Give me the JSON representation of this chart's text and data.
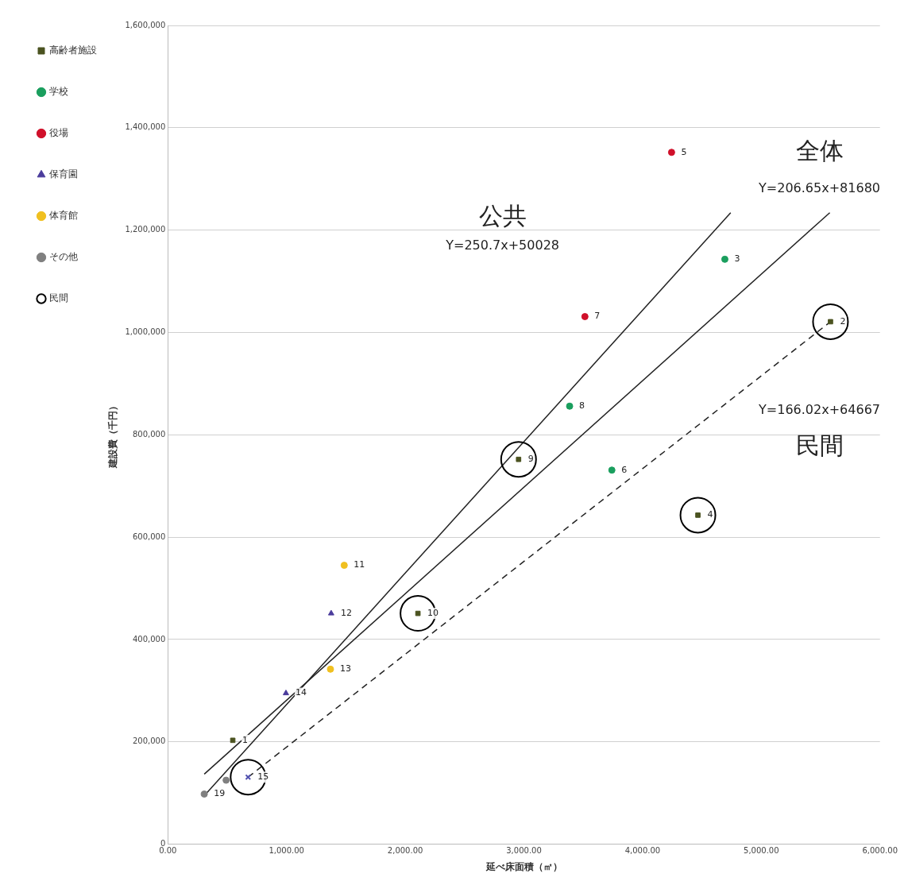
{
  "chart_data": {
    "type": "scatter",
    "xlabel": "延べ床面積（㎡）",
    "ylabel": "建設費（千円）",
    "xlim": [
      0,
      6000
    ],
    "xticks": [
      {
        "value": 0,
        "label": "0.00"
      },
      {
        "value": 1000,
        "label": "1,000.00"
      },
      {
        "value": 2000,
        "label": "2,000.00"
      },
      {
        "value": 3000,
        "label": "3,000.00"
      },
      {
        "value": 4000,
        "label": "4,000.00"
      },
      {
        "value": 5000,
        "label": "5,000.00"
      },
      {
        "value": 6000,
        "label": "6,000.00"
      }
    ],
    "ylim": [
      0,
      1600000
    ],
    "yticks": [
      0,
      {
        "value": 200000,
        "label": "200,000"
      },
      {
        "value": 400000,
        "label": "400,000"
      },
      {
        "value": 600000,
        "label": "600,000"
      },
      {
        "value": 800000,
        "label": "800,000"
      },
      {
        "value": 1000000,
        "label": "1,000,000"
      },
      {
        "value": 1200000,
        "label": "1,200,000"
      },
      {
        "value": 1400000,
        "label": "1,400,000"
      },
      {
        "value": 1600000,
        "label": "1,600,000"
      }
    ],
    "grid": "y",
    "legend": "left",
    "series": [
      {
        "name": "高齢者施設",
        "color": "#4b5320",
        "marker": "square",
        "x": [
          5583,
          4466,
          2955,
          2107,
          547
        ],
        "values": [
          1021000,
          643000,
          752000,
          451000,
          203000
        ]
      },
      {
        "name": "学校",
        "color": "#1a9f5e",
        "marker": "circle",
        "x": [
          4693,
          3385,
          3741
        ],
        "values": [
          1143000,
          856000,
          731000
        ]
      },
      {
        "name": "役場",
        "color": "#d0102a",
        "marker": "circle",
        "x": [
          4244,
          3514
        ],
        "values": [
          1352000,
          1031000
        ]
      },
      {
        "name": "保育園",
        "color": "#4b3c9c",
        "marker": "triangle",
        "x": [
          1376,
          995
        ],
        "values": [
          451000,
          295000
        ]
      },
      {
        "name": "体育館",
        "color": "#f0c020",
        "marker": "circle",
        "x": [
          1486,
          1370
        ],
        "values": [
          545000,
          342000
        ]
      },
      {
        "name": "その他",
        "color": "#808080",
        "x": [
          491,
          307
        ],
        "values": [
          125000,
          98000
        ]
      },
      {
        "color": "#5050b0",
        "marker": "cross",
        "x": [
          676
        ],
        "values": [
          131000
        ]
      },
      {
        "type": "bubble",
        "name": "民間",
        "color": "#000000",
        "x": [
          5583,
          4466,
          2955,
          2107,
          676
        ],
        "values": [
          1021000,
          643000,
          752000,
          451000,
          131000
        ],
        "sizes": [
          1,
          1,
          1,
          1,
          1
        ]
      },
      {
        "type": "line",
        "color": "#222222",
        "marker": "none",
        "line_style": "solid",
        "x": [
          307,
          4742
        ],
        "values": [
          95000,
          1234000
        ]
      },
      {
        "type": "line",
        "color": "#222222",
        "marker": "none",
        "line_style": "solid",
        "x": [
          307,
          5577
        ],
        "values": [
          137000,
          1234000
        ]
      },
      {
        "type": "line",
        "color": "#222222",
        "marker": "none",
        "line_style": "dashed",
        "x": [
          676,
          5583
        ],
        "values": [
          131000,
          1021000
        ]
      }
    ],
    "annotations": [
      "全体",
      "Y=206.65x+81680",
      "公共",
      "Y=250.7x+50028",
      "民間",
      "Y=166.02x+64667",
      {
        "text": "2",
        "x": 5583,
        "y": 1021000
      },
      {
        "text": "4",
        "x": 4466,
        "y": 643000
      },
      {
        "text": "9",
        "x": 2955,
        "y": 752000
      },
      {
        "text": "10",
        "x": 2107,
        "y": 451000
      },
      {
        "text": "1",
        "x": 547,
        "y": 203000
      },
      {
        "text": "15",
        "x": 676,
        "y": 131000
      },
      {
        "text": "19",
        "x": 307,
        "y": 98000
      },
      {
        "text": "3",
        "x": 4693,
        "y": 1143000
      },
      {
        "text": "8",
        "x": 3385,
        "y": 856000
      },
      {
        "text": "6",
        "x": 3741,
        "y": 731000
      },
      {
        "text": "5",
        "x": 4244,
        "y": 1352000
      },
      {
        "text": "7",
        "x": 3514,
        "y": 1031000
      },
      {
        "text": "12",
        "x": 1376,
        "y": 451000
      },
      {
        "text": "14",
        "x": 995,
        "y": 295000
      },
      {
        "text": "11",
        "x": 1486,
        "y": 545000
      },
      {
        "text": "13",
        "x": 1370,
        "y": 342000
      }
    ]
  }
}
